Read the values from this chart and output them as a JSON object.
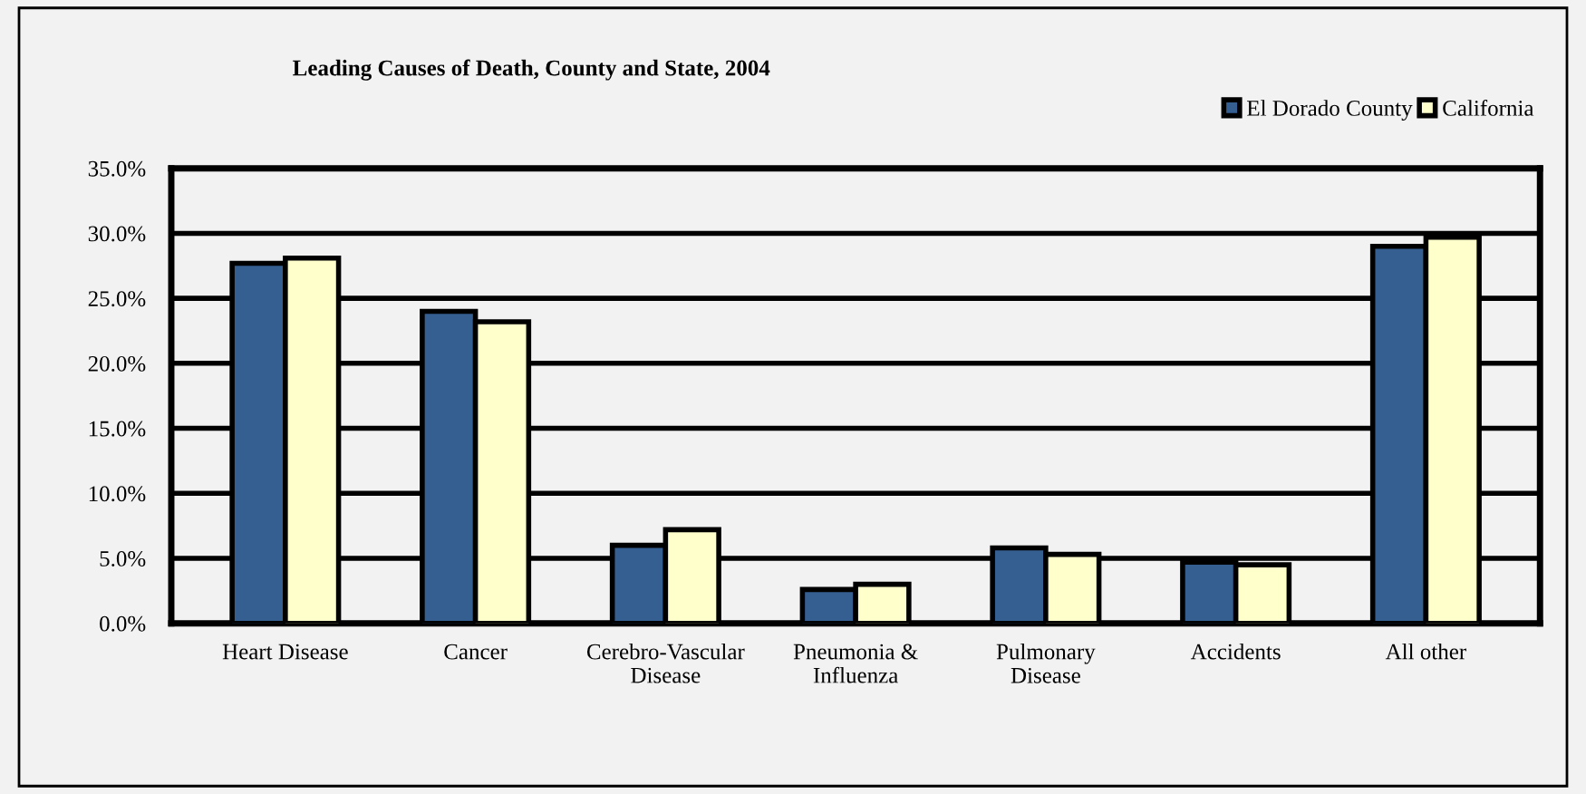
{
  "chart_data": {
    "type": "bar",
    "title": "Leading Causes of Death, County and State, 2004",
    "categories": [
      "Heart Disease",
      "Cancer",
      "Cerebro-Vascular\nDisease",
      "Pneumonia &\nInfluenza",
      "Pulmonary\nDisease",
      "Accidents",
      "All other"
    ],
    "series": [
      {
        "name": "El Dorado County",
        "color": "#365f91",
        "values": [
          27.7,
          24.0,
          6.0,
          2.6,
          5.8,
          4.7,
          29.0
        ]
      },
      {
        "name": "California",
        "color": "#ffffcc",
        "values": [
          28.1,
          23.2,
          7.2,
          3.0,
          5.3,
          4.5,
          29.7
        ]
      }
    ],
    "ylim": [
      0,
      35
    ],
    "yticks": [
      {
        "value": 0,
        "label": "0.0%"
      },
      {
        "value": 5,
        "label": "5.0%"
      },
      {
        "value": 10,
        "label": "10.0%"
      },
      {
        "value": 15,
        "label": "15.0%"
      },
      {
        "value": 20,
        "label": "20.0%"
      },
      {
        "value": 25,
        "label": "25.0%"
      },
      {
        "value": 30,
        "label": "30.0%"
      },
      {
        "value": 35,
        "label": "35.0%"
      }
    ],
    "grid": "y",
    "legend": "top right"
  }
}
